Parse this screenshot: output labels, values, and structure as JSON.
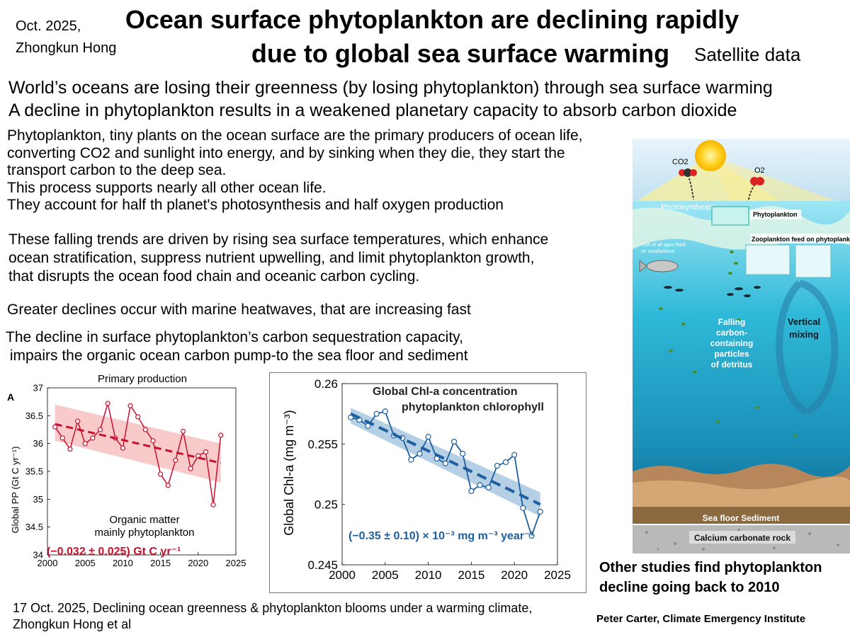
{
  "header": {
    "date": "Oct. 2025,",
    "author": "Zhongkun Hong",
    "title_line1": "Ocean surface phytoplankton are declining rapidly",
    "title_line2": "due to global sea surface warming",
    "source_tag": "Satellite data"
  },
  "lead": [
    "World’s oceans are losing their greenness  (by losing phytoplankton) through sea surface warming",
    "A decline in phytoplankton results in a weakened planetary capacity to absorb carbon dioxide"
  ],
  "paragraphs": {
    "p1": [
      "Phytoplankton, tiny plants on the ocean surface are the primary producers of ocean life,",
      "converting CO2 and sunlight into energy, and by sinking when they die, they start the",
      "transport carbon to the deep sea.",
      "This process supports nearly all other ocean life.",
      "They account for half th planet's photosynthesis  and half oxygen production"
    ],
    "p2": [
      "These falling trends are driven by rising sea surface temperatures, which enhance",
      "ocean stratification, suppress nutrient upwelling, and limit phytoplankton growth,",
      "that disrupts the ocean food chain and oceanic carbon cycling."
    ],
    "p3": "Greater declines occur with marine heatwaves, that are increasing fast",
    "p4": [
      "The decline in surface phytoplankton’s carbon sequestration capacity,",
      " impairs the organic ocean carbon pump-to the sea floor and sediment"
    ]
  },
  "diagram": {
    "co2": "CO2",
    "o2": "O2",
    "photosynthesis": "Photosynthesis",
    "phytoplankton": "Phytoplankton",
    "zooplankton": "Zooplankton feed on phytoplankton",
    "fish": [
      "Fish of all ages feed",
      "on zooplankton"
    ],
    "falling": [
      "Falling",
      "carbon-",
      "containing",
      "particles",
      "of detritus"
    ],
    "vertical": [
      "Vertical",
      "mixing"
    ],
    "sea_floor": "Sea floor Sediment",
    "rock": "Calcium carbonate rock"
  },
  "other_studies": [
    "Other studies find phytoplankton",
    "decline going back to 2010"
  ],
  "citation": [
    "17 Oct. 2025, Declining ocean greenness & phytoplankton blooms under a warming climate,",
    "Zhongkun Hong et al"
  ],
  "credit": "Peter Carter, Climate Emergency Institute",
  "colors": {
    "pp": "#c8102e",
    "pp_band": "#f6b8b8",
    "chl": "#1f5fa0",
    "chl_band": "#9cc0dc"
  },
  "chart_data": [
    {
      "type": "line",
      "panel_label": "A",
      "title": "Primary production",
      "ylabel": "Global PP (Gt C yr⁻¹)",
      "xlabel": "",
      "xlim": [
        2000,
        2025
      ],
      "ylim": [
        34,
        37
      ],
      "xticks": [
        "2000",
        "2005",
        "2010",
        "2015",
        "2020",
        "2025"
      ],
      "yticks": [
        "34",
        "34.5",
        "35",
        "35.5",
        "36",
        "36.5",
        "37"
      ],
      "x": [
        2001,
        2002,
        2003,
        2004,
        2005,
        2006,
        2007,
        2008,
        2009,
        2010,
        2011,
        2012,
        2013,
        2014,
        2015,
        2016,
        2017,
        2018,
        2019,
        2020,
        2021,
        2022,
        2023
      ],
      "values": [
        36.3,
        36.1,
        35.9,
        36.4,
        36.0,
        36.1,
        36.25,
        36.72,
        36.1,
        35.92,
        36.68,
        36.48,
        36.25,
        36.05,
        35.45,
        35.25,
        35.7,
        36.22,
        35.55,
        35.78,
        35.85,
        34.9,
        36.15
      ],
      "trend": {
        "x": [
          2001,
          2023
        ],
        "y": [
          36.35,
          35.65
        ]
      },
      "band": {
        "upper": [
          36.7,
          36.0
        ],
        "lower": [
          36.05,
          35.3
        ]
      },
      "annotation": [
        "Organic matter",
        "mainly phytoplankton"
      ],
      "rate_label": "(−0.032 ± 0.025) Gt C yr⁻¹"
    },
    {
      "type": "line",
      "title": "Global Chl-a concentration",
      "subtitle": "phytoplankton chlorophyll",
      "ylabel": "Global Chl-a (mg m⁻³)",
      "xlabel": "",
      "xlim": [
        2000,
        2025
      ],
      "ylim": [
        0.245,
        0.26
      ],
      "xticks": [
        "2000",
        "2005",
        "2010",
        "2015",
        "2020",
        "2025"
      ],
      "yticks": [
        "0.245",
        "0.25",
        "0.255",
        "0.26"
      ],
      "x": [
        2001,
        2002,
        2003,
        2004,
        2005,
        2006,
        2007,
        2008,
        2009,
        2010,
        2011,
        2012,
        2013,
        2014,
        2015,
        2016,
        2017,
        2018,
        2019,
        2020,
        2021,
        2022,
        2023
      ],
      "values": [
        0.2572,
        0.257,
        0.2565,
        0.2575,
        0.2577,
        0.2557,
        0.2555,
        0.2537,
        0.2542,
        0.2556,
        0.2538,
        0.2534,
        0.2552,
        0.2542,
        0.2511,
        0.2516,
        0.2514,
        0.2532,
        0.2535,
        0.2541,
        0.2497,
        0.2474,
        0.2494
      ],
      "trend": {
        "x": [
          2001,
          2023
        ],
        "y": [
          0.2575,
          0.25
        ]
      },
      "band": {
        "upper": [
          0.258,
          0.251
        ],
        "lower": [
          0.2567,
          0.249
        ]
      },
      "rate_label": "(−0.35 ± 0.10) × 10⁻³ mg m⁻³ year⁻¹"
    }
  ]
}
